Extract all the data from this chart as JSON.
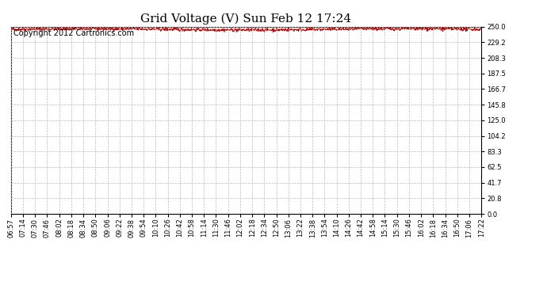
{
  "title": "Grid Voltage (V) Sun Feb 12 17:24",
  "copyright": "Copyright 2012 Cartronics.com",
  "line_color": "#cc0000",
  "bg_color": "#ffffff",
  "plot_bg_color": "#ffffff",
  "grid_color": "#bbbbbb",
  "grid_style": "--",
  "ylim": [
    0.0,
    250.0
  ],
  "yticks": [
    0.0,
    20.8,
    41.7,
    62.5,
    83.3,
    104.2,
    125.0,
    145.8,
    166.7,
    187.5,
    208.3,
    229.2,
    250.0
  ],
  "xtick_labels": [
    "06:57",
    "07:14",
    "07:30",
    "07:46",
    "08:02",
    "08:18",
    "08:34",
    "08:50",
    "09:06",
    "09:22",
    "09:38",
    "09:54",
    "10:10",
    "10:26",
    "10:42",
    "10:58",
    "11:14",
    "11:30",
    "11:46",
    "12:02",
    "12:18",
    "12:34",
    "12:50",
    "13:06",
    "13:22",
    "13:38",
    "13:54",
    "14:10",
    "14:26",
    "14:42",
    "14:58",
    "15:14",
    "15:30",
    "15:46",
    "16:02",
    "16:18",
    "16:34",
    "16:50",
    "17:06",
    "17:22"
  ],
  "mean_voltage": 246.5,
  "noise_amplitude": 1.2,
  "title_fontsize": 11,
  "copyright_fontsize": 7,
  "tick_fontsize": 6,
  "line_width": 0.7
}
